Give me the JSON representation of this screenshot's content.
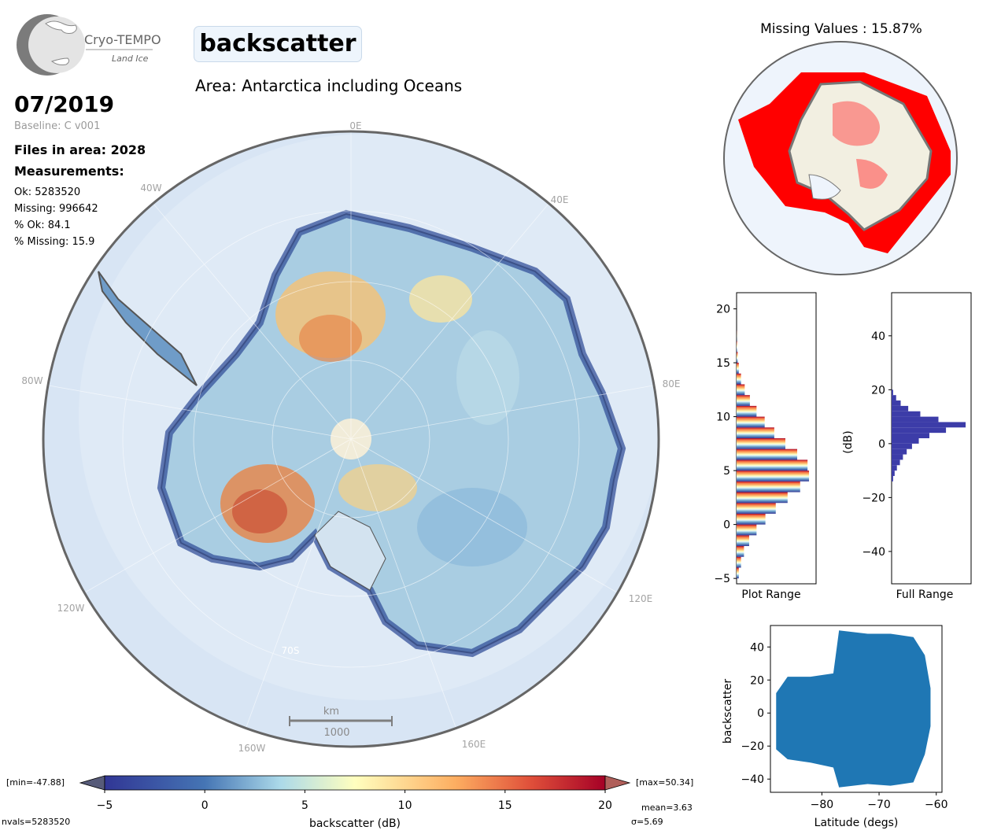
{
  "logo": {
    "name": "Cryo-TEMPO",
    "sub": "Land Ice"
  },
  "title": "backscatter",
  "area_title": "Area: Antarctica including Oceans",
  "date": "07/2019",
  "baseline": "Baseline: C v001",
  "files_in_area": "Files in area: 2028",
  "measurements_label": "Measurements:",
  "stats": [
    "Ok: 5283520",
    "Missing: 996642",
    "% Ok: 84.1",
    "% Missing: 15.9"
  ],
  "missing_title": "Missing Values : 15.87%",
  "map": {
    "lon_labels": [
      "0E",
      "40E",
      "80E",
      "120E",
      "160E",
      "160W",
      "120W",
      "80W",
      "40W"
    ],
    "lat_label": "70S",
    "scale_unit": "km",
    "scale_value": "1000"
  },
  "colorbar": {
    "label": "backscatter (dB)",
    "ticks": [
      "−5",
      "0",
      "5",
      "10",
      "15",
      "20"
    ],
    "min_text": "[min=-47.88]",
    "max_text": "[max=50.34]",
    "nvals": "nvals=5283520",
    "mean": "mean=3.63",
    "sigma": "σ=5.69"
  },
  "colors": {
    "missing": "#ff0000",
    "hist_full": "#3c3ca8",
    "scatter": "#1f77b4"
  },
  "chart_data": [
    {
      "type": "bar",
      "title": "",
      "xlabel": "Plot Range",
      "ylabel": "",
      "orientation": "horizontal",
      "ylim": [
        -5.5,
        21.5
      ],
      "yticks": [
        "−5",
        "0",
        "5",
        "10",
        "15",
        "20"
      ],
      "bins": [
        -5,
        -4,
        -3,
        -2,
        -1,
        0,
        1,
        2,
        3,
        4,
        5,
        6,
        7,
        8,
        9,
        10,
        11,
        12,
        13,
        14,
        15,
        16,
        17
      ],
      "counts": [
        0.03,
        0.06,
        0.1,
        0.17,
        0.27,
        0.39,
        0.53,
        0.69,
        0.86,
        0.98,
        0.96,
        0.82,
        0.66,
        0.51,
        0.38,
        0.27,
        0.18,
        0.11,
        0.06,
        0.03,
        0.015,
        0.007,
        0.002
      ]
    },
    {
      "type": "bar",
      "title": "",
      "xlabel": "Full Range",
      "ylabel": "(dB)",
      "orientation": "horizontal",
      "ylim": [
        -52,
        56
      ],
      "yticks": [
        "−40",
        "−20",
        "0",
        "20",
        "40"
      ],
      "bins": [
        -14,
        -12,
        -10,
        -8,
        -6,
        -4,
        -2,
        0,
        2,
        4,
        6,
        8,
        10,
        12,
        14,
        16,
        18
      ],
      "counts": [
        0.02,
        0.04,
        0.07,
        0.11,
        0.15,
        0.2,
        0.27,
        0.36,
        0.5,
        0.72,
        0.98,
        0.62,
        0.38,
        0.22,
        0.12,
        0.06,
        0.02
      ]
    },
    {
      "type": "scatter",
      "title": "",
      "xlabel": "Latitude (degs)",
      "ylabel": "backscatter",
      "xlim": [
        -89,
        -59
      ],
      "ylim": [
        -48,
        53
      ],
      "xticks": [
        "−80",
        "−70",
        "−60"
      ],
      "yticks": [
        "−40",
        "−20",
        "0",
        "20",
        "40"
      ],
      "envelope": [
        {
          "x": -88,
          "ymin": -22,
          "ymax": 12
        },
        {
          "x": -86,
          "ymin": -28,
          "ymax": 22
        },
        {
          "x": -82,
          "ymin": -30,
          "ymax": 22
        },
        {
          "x": -78,
          "ymin": -33,
          "ymax": 24
        },
        {
          "x": -77,
          "ymin": -45,
          "ymax": 50
        },
        {
          "x": -72,
          "ymin": -43,
          "ymax": 48
        },
        {
          "x": -68,
          "ymin": -44,
          "ymax": 48
        },
        {
          "x": -64,
          "ymin": -42,
          "ymax": 46
        },
        {
          "x": -62,
          "ymin": -25,
          "ymax": 35
        },
        {
          "x": -61,
          "ymin": -8,
          "ymax": 15
        }
      ]
    }
  ]
}
